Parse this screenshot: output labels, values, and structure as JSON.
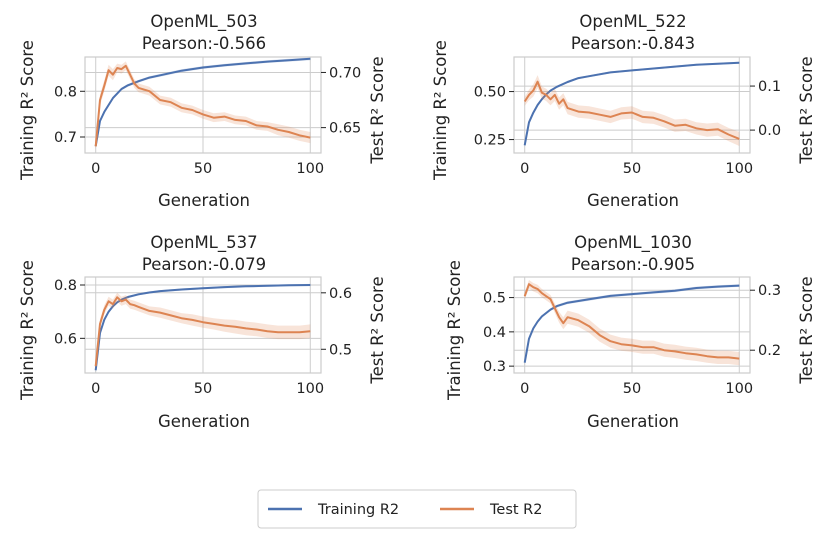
{
  "chart_data": [
    {
      "type": "line",
      "title": "OpenML_503",
      "subtitle": "Pearson:-0.566",
      "xlabel": "Generation",
      "ylabel_left": "Training R² Score",
      "ylabel_right": "Test R² Score",
      "xlim": [
        0,
        100
      ],
      "ylim_left": [
        0.665,
        0.875
      ],
      "ylim_right": [
        0.627,
        0.714
      ],
      "xticks": [
        0,
        50,
        100
      ],
      "yticks_left": [
        0.7,
        0.8
      ],
      "yticks_right": [
        0.65,
        0.7
      ],
      "grid": true,
      "series": [
        {
          "name": "Training R2",
          "axis": "left",
          "color": "#4c72b0",
          "x": [
            0,
            2,
            4,
            6,
            8,
            10,
            12,
            15,
            20,
            25,
            30,
            40,
            50,
            60,
            70,
            80,
            90,
            100
          ],
          "values": [
            0.68,
            0.735,
            0.755,
            0.77,
            0.785,
            0.795,
            0.805,
            0.813,
            0.822,
            0.83,
            0.835,
            0.845,
            0.852,
            0.857,
            0.861,
            0.865,
            0.868,
            0.871
          ],
          "band": [
            0.004,
            0.004,
            0.004,
            0.003,
            0.003,
            0.003,
            0.003,
            0.003,
            0.003,
            0.003,
            0.003,
            0.003,
            0.003,
            0.003,
            0.003,
            0.003,
            0.003,
            0.003
          ]
        },
        {
          "name": "Test R2",
          "axis": "right",
          "color": "#dd8452",
          "x": [
            0,
            2,
            4,
            6,
            8,
            10,
            12,
            14,
            16,
            18,
            20,
            25,
            30,
            35,
            40,
            45,
            50,
            55,
            60,
            65,
            70,
            75,
            80,
            85,
            90,
            95,
            100
          ],
          "values": [
            0.633,
            0.675,
            0.688,
            0.702,
            0.698,
            0.704,
            0.703,
            0.706,
            0.698,
            0.69,
            0.686,
            0.683,
            0.675,
            0.673,
            0.668,
            0.666,
            0.662,
            0.659,
            0.66,
            0.657,
            0.656,
            0.652,
            0.651,
            0.648,
            0.646,
            0.643,
            0.641
          ],
          "band": [
            0.004,
            0.005,
            0.005,
            0.005,
            0.005,
            0.004,
            0.004,
            0.004,
            0.004,
            0.004,
            0.004,
            0.004,
            0.004,
            0.004,
            0.004,
            0.004,
            0.004,
            0.004,
            0.004,
            0.004,
            0.004,
            0.004,
            0.004,
            0.005,
            0.005,
            0.005,
            0.005
          ]
        }
      ]
    },
    {
      "type": "line",
      "title": "OpenML_522",
      "subtitle": "Pearson:-0.843",
      "xlabel": "Generation",
      "ylabel_left": "Training R² Score",
      "ylabel_right": "Test R² Score",
      "xlim": [
        0,
        100
      ],
      "ylim_left": [
        0.18,
        0.68
      ],
      "ylim_right": [
        -0.052,
        0.166
      ],
      "xticks": [
        0,
        50,
        100
      ],
      "yticks_left": [
        0.25,
        0.5
      ],
      "yticks_right": [
        0.0,
        0.1
      ],
      "ytick_labels_left": [
        "0.25",
        "0.50"
      ],
      "ytick_labels_right": [
        "0.0",
        "0.1"
      ],
      "grid": true,
      "series": [
        {
          "name": "Training R2",
          "axis": "left",
          "color": "#4c72b0",
          "x": [
            0,
            2,
            4,
            6,
            8,
            10,
            12,
            15,
            20,
            25,
            30,
            40,
            50,
            60,
            70,
            80,
            90,
            100
          ],
          "values": [
            0.22,
            0.34,
            0.39,
            0.43,
            0.46,
            0.485,
            0.505,
            0.525,
            0.55,
            0.57,
            0.58,
            0.6,
            0.61,
            0.62,
            0.63,
            0.64,
            0.645,
            0.65
          ],
          "band": [
            0.01,
            0.01,
            0.01,
            0.008,
            0.008,
            0.007,
            0.006,
            0.006,
            0.006,
            0.005,
            0.005,
            0.005,
            0.005,
            0.005,
            0.005,
            0.005,
            0.005,
            0.005
          ]
        },
        {
          "name": "Test R2",
          "axis": "right",
          "color": "#dd8452",
          "x": [
            0,
            2,
            4,
            6,
            8,
            10,
            12,
            14,
            16,
            18,
            20,
            25,
            30,
            35,
            40,
            45,
            50,
            55,
            60,
            65,
            70,
            75,
            80,
            85,
            90,
            95,
            100
          ],
          "values": [
            0.065,
            0.08,
            0.09,
            0.11,
            0.085,
            0.08,
            0.07,
            0.08,
            0.06,
            0.07,
            0.05,
            0.042,
            0.04,
            0.035,
            0.03,
            0.038,
            0.04,
            0.03,
            0.028,
            0.02,
            0.01,
            0.012,
            0.004,
            0.0,
            0.002,
            -0.01,
            -0.02
          ],
          "band": [
            0.01,
            0.012,
            0.014,
            0.015,
            0.014,
            0.014,
            0.014,
            0.014,
            0.014,
            0.014,
            0.014,
            0.014,
            0.014,
            0.014,
            0.014,
            0.014,
            0.014,
            0.014,
            0.014,
            0.014,
            0.014,
            0.014,
            0.014,
            0.015,
            0.015,
            0.015,
            0.016
          ]
        }
      ]
    },
    {
      "type": "line",
      "title": "OpenML_537",
      "subtitle": "Pearson:-0.079",
      "xlabel": "Generation",
      "ylabel_left": "Training R² Score",
      "ylabel_right": "Test R² Score",
      "xlim": [
        0,
        100
      ],
      "ylim_left": [
        0.47,
        0.83
      ],
      "ylim_right": [
        0.458,
        0.628
      ],
      "xticks": [
        0,
        50,
        100
      ],
      "yticks_left": [
        0.6,
        0.8
      ],
      "yticks_right": [
        0.5,
        0.6
      ],
      "grid": true,
      "series": [
        {
          "name": "Training R2",
          "axis": "left",
          "color": "#4c72b0",
          "x": [
            0,
            2,
            4,
            6,
            8,
            10,
            12,
            15,
            20,
            25,
            30,
            40,
            50,
            60,
            70,
            80,
            90,
            100
          ],
          "values": [
            0.48,
            0.62,
            0.67,
            0.7,
            0.72,
            0.735,
            0.745,
            0.755,
            0.765,
            0.772,
            0.777,
            0.783,
            0.788,
            0.792,
            0.795,
            0.797,
            0.799,
            0.8
          ],
          "band": [
            0.01,
            0.01,
            0.008,
            0.006,
            0.005,
            0.005,
            0.004,
            0.004,
            0.004,
            0.004,
            0.004,
            0.004,
            0.004,
            0.004,
            0.004,
            0.004,
            0.004,
            0.004
          ]
        },
        {
          "name": "Test R2",
          "axis": "right",
          "color": "#dd8452",
          "x": [
            0,
            2,
            4,
            6,
            8,
            10,
            12,
            14,
            16,
            18,
            20,
            25,
            30,
            35,
            40,
            45,
            50,
            55,
            60,
            65,
            70,
            75,
            80,
            85,
            90,
            95,
            100
          ],
          "values": [
            0.47,
            0.545,
            0.57,
            0.585,
            0.58,
            0.592,
            0.585,
            0.588,
            0.58,
            0.578,
            0.575,
            0.568,
            0.565,
            0.56,
            0.555,
            0.552,
            0.548,
            0.545,
            0.542,
            0.54,
            0.537,
            0.535,
            0.532,
            0.53,
            0.53,
            0.53,
            0.532
          ],
          "band": [
            0.008,
            0.008,
            0.008,
            0.008,
            0.008,
            0.008,
            0.008,
            0.008,
            0.008,
            0.008,
            0.008,
            0.008,
            0.009,
            0.009,
            0.009,
            0.01,
            0.01,
            0.01,
            0.011,
            0.012,
            0.012,
            0.012,
            0.012,
            0.012,
            0.012,
            0.012,
            0.012
          ]
        }
      ]
    },
    {
      "type": "line",
      "title": "OpenML_1030",
      "subtitle": "Pearson:-0.905",
      "xlabel": "Generation",
      "ylabel_left": "Training R² Score",
      "ylabel_right": "Test R² Score",
      "xlim": [
        0,
        100
      ],
      "ylim_left": [
        0.28,
        0.56
      ],
      "ylim_right": [
        0.162,
        0.322
      ],
      "xticks": [
        0,
        50,
        100
      ],
      "yticks_left": [
        0.3,
        0.4,
        0.5
      ],
      "yticks_right": [
        0.2,
        0.3
      ],
      "grid": true,
      "series": [
        {
          "name": "Training R2",
          "axis": "left",
          "color": "#4c72b0",
          "x": [
            0,
            2,
            4,
            6,
            8,
            10,
            12,
            15,
            20,
            25,
            30,
            40,
            50,
            60,
            70,
            80,
            90,
            100
          ],
          "values": [
            0.31,
            0.38,
            0.41,
            0.43,
            0.445,
            0.455,
            0.465,
            0.475,
            0.485,
            0.49,
            0.495,
            0.505,
            0.51,
            0.515,
            0.52,
            0.528,
            0.532,
            0.535
          ],
          "band": [
            0.005,
            0.005,
            0.005,
            0.004,
            0.004,
            0.004,
            0.004,
            0.004,
            0.004,
            0.004,
            0.004,
            0.004,
            0.004,
            0.004,
            0.004,
            0.004,
            0.004,
            0.004
          ]
        },
        {
          "name": "Test R2",
          "axis": "right",
          "color": "#dd8452",
          "x": [
            0,
            2,
            4,
            6,
            8,
            10,
            12,
            14,
            16,
            18,
            20,
            25,
            30,
            35,
            40,
            45,
            50,
            55,
            60,
            65,
            70,
            75,
            80,
            85,
            90,
            95,
            100
          ],
          "values": [
            0.29,
            0.31,
            0.305,
            0.302,
            0.295,
            0.29,
            0.285,
            0.27,
            0.255,
            0.245,
            0.255,
            0.25,
            0.24,
            0.225,
            0.215,
            0.21,
            0.208,
            0.205,
            0.205,
            0.2,
            0.198,
            0.195,
            0.193,
            0.19,
            0.188,
            0.188,
            0.186
          ],
          "band": [
            0.006,
            0.007,
            0.007,
            0.007,
            0.007,
            0.007,
            0.007,
            0.008,
            0.009,
            0.01,
            0.011,
            0.011,
            0.011,
            0.011,
            0.011,
            0.011,
            0.011,
            0.011,
            0.011,
            0.011,
            0.011,
            0.011,
            0.011,
            0.011,
            0.011,
            0.011,
            0.011
          ]
        }
      ]
    }
  ],
  "legend": {
    "position": "bottom-center",
    "items": [
      {
        "label": "Training R2",
        "color": "#4c72b0"
      },
      {
        "label": "Test R2",
        "color": "#dd8452"
      }
    ]
  }
}
